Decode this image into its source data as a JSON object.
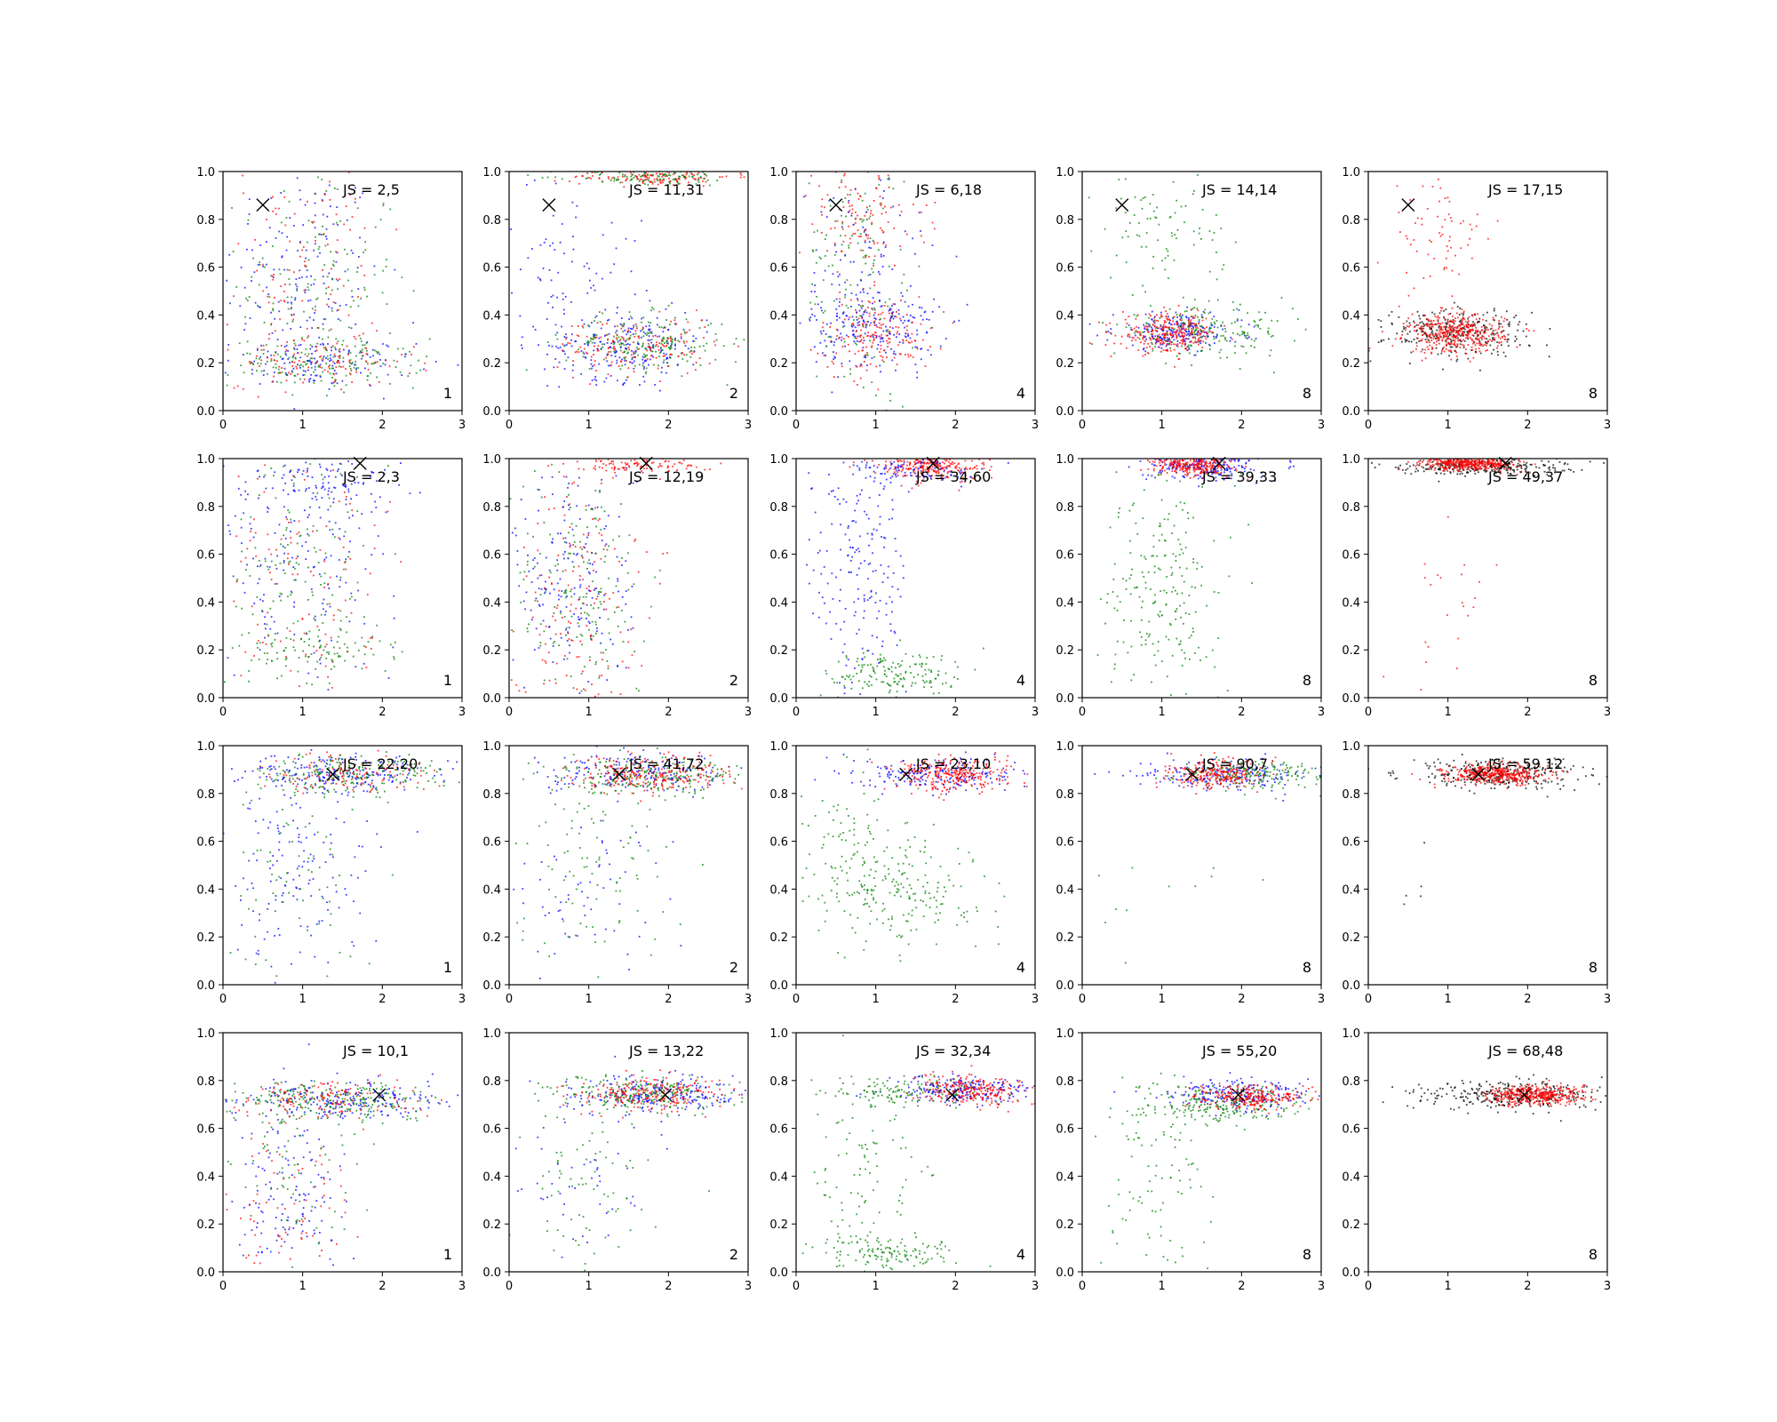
{
  "figure": {
    "rows": 4,
    "cols": 5,
    "xlim": [
      0,
      3
    ],
    "ylim": [
      0,
      1
    ],
    "xticks": [
      "0",
      "1",
      "2",
      "3"
    ],
    "yticks": [
      "0.0",
      "0.2",
      "0.4",
      "0.6",
      "0.8",
      "1.0"
    ],
    "marker_color": "#000000",
    "series_colors": {
      "blue": "#0000ff",
      "green": "#008000",
      "red": "#ff0000",
      "black": "#000000"
    }
  },
  "chart_data": {
    "type": "scatter",
    "grid": false,
    "panels": [
      {
        "row": 0,
        "col": 0,
        "js": "JS = 2,5",
        "tag": "1",
        "marker": [
          0.5,
          0.86
        ]
      },
      {
        "row": 0,
        "col": 1,
        "js": "JS = 11,31",
        "tag": "2",
        "marker": [
          0.5,
          0.86
        ]
      },
      {
        "row": 0,
        "col": 2,
        "js": "JS = 6,18",
        "tag": "4",
        "marker": [
          0.5,
          0.86
        ]
      },
      {
        "row": 0,
        "col": 3,
        "js": "JS = 14,14",
        "tag": "8",
        "marker": [
          0.5,
          0.86
        ]
      },
      {
        "row": 0,
        "col": 4,
        "js": "JS = 17,15",
        "tag": "8",
        "marker": [
          0.5,
          0.86
        ]
      },
      {
        "row": 1,
        "col": 0,
        "js": "JS = 2,3",
        "tag": "1",
        "marker": [
          1.72,
          0.98
        ]
      },
      {
        "row": 1,
        "col": 1,
        "js": "JS = 12,19",
        "tag": "2",
        "marker": [
          1.72,
          0.98
        ]
      },
      {
        "row": 1,
        "col": 2,
        "js": "JS = 34,60",
        "tag": "4",
        "marker": [
          1.72,
          0.98
        ]
      },
      {
        "row": 1,
        "col": 3,
        "js": "JS = 39,33",
        "tag": "8",
        "marker": [
          1.72,
          0.98
        ]
      },
      {
        "row": 1,
        "col": 4,
        "js": "JS = 49,37",
        "tag": "8",
        "marker": [
          1.72,
          0.98
        ]
      },
      {
        "row": 2,
        "col": 0,
        "js": "JS = 22,20",
        "tag": "1",
        "marker": [
          1.38,
          0.88
        ]
      },
      {
        "row": 2,
        "col": 1,
        "js": "JS = 41,72",
        "tag": "2",
        "marker": [
          1.38,
          0.88
        ]
      },
      {
        "row": 2,
        "col": 2,
        "js": "JS = 23,10",
        "tag": "4",
        "marker": [
          1.38,
          0.88
        ]
      },
      {
        "row": 2,
        "col": 3,
        "js": "JS = 90,7",
        "tag": "8",
        "marker": [
          1.38,
          0.88
        ]
      },
      {
        "row": 2,
        "col": 4,
        "js": "JS = 59,12",
        "tag": "8",
        "marker": [
          1.38,
          0.88
        ]
      },
      {
        "row": 3,
        "col": 0,
        "js": "JS = 10,1",
        "tag": "1",
        "marker": [
          1.96,
          0.74
        ]
      },
      {
        "row": 3,
        "col": 1,
        "js": "JS = 13,22",
        "tag": "2",
        "marker": [
          1.96,
          0.74
        ]
      },
      {
        "row": 3,
        "col": 2,
        "js": "JS = 32,34",
        "tag": "4",
        "marker": [
          1.96,
          0.74
        ]
      },
      {
        "row": 3,
        "col": 3,
        "js": "JS = 55,20",
        "tag": "8",
        "marker": [
          1.96,
          0.74
        ]
      },
      {
        "row": 3,
        "col": 4,
        "js": "JS = 68,48",
        "tag": "8",
        "marker": [
          1.96,
          0.74
        ]
      }
    ],
    "clusters": {
      "0-0": [
        {
          "color": "blue",
          "n": 170,
          "cx": 1.0,
          "cy": 0.55,
          "sx": 0.5,
          "sy": 0.25
        },
        {
          "color": "green",
          "n": 150,
          "cx": 1.2,
          "cy": 0.55,
          "sx": 0.5,
          "sy": 0.25
        },
        {
          "color": "red",
          "n": 120,
          "cx": 1.0,
          "cy": 0.55,
          "sx": 0.5,
          "sy": 0.25
        },
        {
          "color": "green",
          "n": 160,
          "cx": 1.3,
          "cy": 0.2,
          "sx": 0.6,
          "sy": 0.05
        },
        {
          "color": "blue",
          "n": 120,
          "cx": 1.2,
          "cy": 0.2,
          "sx": 0.6,
          "sy": 0.05
        },
        {
          "color": "red",
          "n": 100,
          "cx": 1.2,
          "cy": 0.2,
          "sx": 0.6,
          "sy": 0.05
        }
      ],
      "0-1": [
        {
          "color": "red",
          "n": 150,
          "cx": 1.8,
          "cy": 0.98,
          "sx": 0.5,
          "sy": 0.02
        },
        {
          "color": "green",
          "n": 120,
          "cx": 1.8,
          "cy": 0.98,
          "sx": 0.5,
          "sy": 0.02
        },
        {
          "color": "blue",
          "n": 220,
          "cx": 1.5,
          "cy": 0.27,
          "sx": 0.5,
          "sy": 0.07
        },
        {
          "color": "green",
          "n": 200,
          "cx": 1.7,
          "cy": 0.28,
          "sx": 0.5,
          "sy": 0.06
        },
        {
          "color": "red",
          "n": 160,
          "cx": 1.6,
          "cy": 0.27,
          "sx": 0.5,
          "sy": 0.06
        },
        {
          "color": "blue",
          "n": 90,
          "cx": 0.7,
          "cy": 0.6,
          "sx": 0.5,
          "sy": 0.2
        }
      ],
      "0-2": [
        {
          "color": "blue",
          "n": 200,
          "cx": 1.0,
          "cy": 0.35,
          "sx": 0.4,
          "sy": 0.08
        },
        {
          "color": "red",
          "n": 180,
          "cx": 1.0,
          "cy": 0.32,
          "sx": 0.35,
          "sy": 0.08
        },
        {
          "color": "green",
          "n": 150,
          "cx": 0.8,
          "cy": 0.6,
          "sx": 0.35,
          "sy": 0.3
        },
        {
          "color": "red",
          "n": 130,
          "cx": 0.8,
          "cy": 0.8,
          "sx": 0.4,
          "sy": 0.12
        },
        {
          "color": "blue",
          "n": 110,
          "cx": 0.8,
          "cy": 0.6,
          "sx": 0.4,
          "sy": 0.25
        }
      ],
      "0-3": [
        {
          "color": "blue",
          "n": 220,
          "cx": 1.2,
          "cy": 0.33,
          "sx": 0.4,
          "sy": 0.04
        },
        {
          "color": "green",
          "n": 200,
          "cx": 1.5,
          "cy": 0.33,
          "sx": 0.55,
          "sy": 0.05
        },
        {
          "color": "red",
          "n": 280,
          "cx": 1.1,
          "cy": 0.32,
          "sx": 0.3,
          "sy": 0.04
        },
        {
          "color": "green",
          "n": 90,
          "cx": 1.0,
          "cy": 0.75,
          "sx": 0.4,
          "sy": 0.12
        }
      ],
      "0-4": [
        {
          "color": "black",
          "n": 300,
          "cx": 1.1,
          "cy": 0.33,
          "sx": 0.45,
          "sy": 0.05
        },
        {
          "color": "red",
          "n": 420,
          "cx": 1.1,
          "cy": 0.32,
          "sx": 0.3,
          "sy": 0.04
        },
        {
          "color": "red",
          "n": 70,
          "cx": 0.9,
          "cy": 0.72,
          "sx": 0.3,
          "sy": 0.15
        }
      ],
      "1-0": [
        {
          "color": "blue",
          "n": 180,
          "cx": 1.0,
          "cy": 0.6,
          "sx": 0.6,
          "sy": 0.25
        },
        {
          "color": "green",
          "n": 150,
          "cx": 1.0,
          "cy": 0.55,
          "sx": 0.5,
          "sy": 0.28
        },
        {
          "color": "red",
          "n": 120,
          "cx": 1.0,
          "cy": 0.5,
          "sx": 0.5,
          "sy": 0.28
        },
        {
          "color": "blue",
          "n": 100,
          "cx": 1.2,
          "cy": 0.9,
          "sx": 0.6,
          "sy": 0.06
        },
        {
          "color": "green",
          "n": 90,
          "cx": 1.1,
          "cy": 0.2,
          "sx": 0.5,
          "sy": 0.05
        }
      ],
      "1-1": [
        {
          "color": "blue",
          "n": 200,
          "cx": 0.8,
          "cy": 0.5,
          "sx": 0.4,
          "sy": 0.28
        },
        {
          "color": "green",
          "n": 180,
          "cx": 0.9,
          "cy": 0.45,
          "sx": 0.4,
          "sy": 0.28
        },
        {
          "color": "red",
          "n": 170,
          "cx": 0.8,
          "cy": 0.4,
          "sx": 0.4,
          "sy": 0.28
        },
        {
          "color": "red",
          "n": 120,
          "cx": 1.6,
          "cy": 0.98,
          "sx": 0.4,
          "sy": 0.02
        }
      ],
      "1-2": [
        {
          "color": "red",
          "n": 300,
          "cx": 1.7,
          "cy": 0.97,
          "sx": 0.35,
          "sy": 0.03
        },
        {
          "color": "blue",
          "n": 200,
          "cx": 0.8,
          "cy": 0.55,
          "sx": 0.3,
          "sy": 0.28
        },
        {
          "color": "green",
          "n": 160,
          "cx": 1.3,
          "cy": 0.1,
          "sx": 0.45,
          "sy": 0.05
        },
        {
          "color": "blue",
          "n": 100,
          "cx": 1.5,
          "cy": 0.95,
          "sx": 0.45,
          "sy": 0.03
        }
      ],
      "1-3": [
        {
          "color": "blue",
          "n": 220,
          "cx": 1.5,
          "cy": 0.97,
          "sx": 0.35,
          "sy": 0.03
        },
        {
          "color": "red",
          "n": 280,
          "cx": 1.4,
          "cy": 0.97,
          "sx": 0.25,
          "sy": 0.02
        },
        {
          "color": "green",
          "n": 220,
          "cx": 1.0,
          "cy": 0.45,
          "sx": 0.35,
          "sy": 0.25
        }
      ],
      "1-4": [
        {
          "color": "black",
          "n": 280,
          "cx": 1.4,
          "cy": 0.97,
          "sx": 0.55,
          "sy": 0.02
        },
        {
          "color": "red",
          "n": 420,
          "cx": 1.3,
          "cy": 0.98,
          "sx": 0.3,
          "sy": 0.015
        },
        {
          "color": "red",
          "n": 25,
          "cx": 1.0,
          "cy": 0.4,
          "sx": 0.25,
          "sy": 0.2
        }
      ],
      "2-0": [
        {
          "color": "blue",
          "n": 200,
          "cx": 1.5,
          "cy": 0.88,
          "sx": 0.7,
          "sy": 0.04
        },
        {
          "color": "green",
          "n": 200,
          "cx": 1.6,
          "cy": 0.88,
          "sx": 0.6,
          "sy": 0.04
        },
        {
          "color": "red",
          "n": 120,
          "cx": 1.5,
          "cy": 0.88,
          "sx": 0.6,
          "sy": 0.04
        },
        {
          "color": "blue",
          "n": 160,
          "cx": 0.9,
          "cy": 0.45,
          "sx": 0.5,
          "sy": 0.25
        },
        {
          "color": "green",
          "n": 80,
          "cx": 1.0,
          "cy": 0.45,
          "sx": 0.5,
          "sy": 0.25
        }
      ],
      "2-1": [
        {
          "color": "blue",
          "n": 180,
          "cx": 1.7,
          "cy": 0.88,
          "sx": 0.6,
          "sy": 0.04
        },
        {
          "color": "green",
          "n": 200,
          "cx": 1.8,
          "cy": 0.88,
          "sx": 0.55,
          "sy": 0.04
        },
        {
          "color": "red",
          "n": 240,
          "cx": 1.8,
          "cy": 0.88,
          "sx": 0.5,
          "sy": 0.04
        },
        {
          "color": "green",
          "n": 110,
          "cx": 1.0,
          "cy": 0.45,
          "sx": 0.5,
          "sy": 0.25
        },
        {
          "color": "blue",
          "n": 70,
          "cx": 0.9,
          "cy": 0.4,
          "sx": 0.5,
          "sy": 0.25
        }
      ],
      "2-2": [
        {
          "color": "blue",
          "n": 200,
          "cx": 1.8,
          "cy": 0.88,
          "sx": 0.5,
          "sy": 0.035
        },
        {
          "color": "red",
          "n": 280,
          "cx": 2.0,
          "cy": 0.88,
          "sx": 0.35,
          "sy": 0.035
        },
        {
          "color": "green",
          "n": 200,
          "cx": 1.3,
          "cy": 0.4,
          "sx": 0.5,
          "sy": 0.12
        },
        {
          "color": "green",
          "n": 80,
          "cx": 0.7,
          "cy": 0.6,
          "sx": 0.3,
          "sy": 0.2
        }
      ],
      "2-3": [
        {
          "color": "blue",
          "n": 180,
          "cx": 1.8,
          "cy": 0.88,
          "sx": 0.55,
          "sy": 0.03
        },
        {
          "color": "green",
          "n": 200,
          "cx": 2.2,
          "cy": 0.88,
          "sx": 0.5,
          "sy": 0.03
        },
        {
          "color": "red",
          "n": 250,
          "cx": 1.7,
          "cy": 0.88,
          "sx": 0.3,
          "sy": 0.03
        },
        {
          "color": "green",
          "n": 12,
          "cx": 1.0,
          "cy": 0.4,
          "sx": 0.5,
          "sy": 0.25
        }
      ],
      "2-4": [
        {
          "color": "black",
          "n": 280,
          "cx": 1.6,
          "cy": 0.88,
          "sx": 0.55,
          "sy": 0.03
        },
        {
          "color": "red",
          "n": 420,
          "cx": 1.6,
          "cy": 0.88,
          "sx": 0.3,
          "sy": 0.02
        },
        {
          "color": "black",
          "n": 5,
          "cx": 0.6,
          "cy": 0.5,
          "sx": 0.2,
          "sy": 0.1
        }
      ],
      "3-0": [
        {
          "color": "blue",
          "n": 220,
          "cx": 1.5,
          "cy": 0.72,
          "sx": 0.7,
          "sy": 0.04
        },
        {
          "color": "green",
          "n": 220,
          "cx": 1.4,
          "cy": 0.72,
          "sx": 0.6,
          "sy": 0.04
        },
        {
          "color": "red",
          "n": 140,
          "cx": 1.3,
          "cy": 0.72,
          "sx": 0.6,
          "sy": 0.04
        },
        {
          "color": "blue",
          "n": 140,
          "cx": 0.8,
          "cy": 0.3,
          "sx": 0.4,
          "sy": 0.2
        },
        {
          "color": "red",
          "n": 80,
          "cx": 0.8,
          "cy": 0.25,
          "sx": 0.4,
          "sy": 0.2
        },
        {
          "color": "green",
          "n": 70,
          "cx": 0.9,
          "cy": 0.4,
          "sx": 0.4,
          "sy": 0.2
        }
      ],
      "3-1": [
        {
          "color": "blue",
          "n": 220,
          "cx": 1.8,
          "cy": 0.74,
          "sx": 0.6,
          "sy": 0.04
        },
        {
          "color": "green",
          "n": 220,
          "cx": 1.7,
          "cy": 0.74,
          "sx": 0.55,
          "sy": 0.04
        },
        {
          "color": "red",
          "n": 220,
          "cx": 1.8,
          "cy": 0.74,
          "sx": 0.45,
          "sy": 0.035
        },
        {
          "color": "green",
          "n": 80,
          "cx": 1.0,
          "cy": 0.4,
          "sx": 0.45,
          "sy": 0.2
        },
        {
          "color": "blue",
          "n": 50,
          "cx": 0.9,
          "cy": 0.4,
          "sx": 0.45,
          "sy": 0.2
        }
      ],
      "3-2": [
        {
          "color": "blue",
          "n": 220,
          "cx": 2.1,
          "cy": 0.76,
          "sx": 0.45,
          "sy": 0.03
        },
        {
          "color": "red",
          "n": 250,
          "cx": 2.2,
          "cy": 0.76,
          "sx": 0.35,
          "sy": 0.03
        },
        {
          "color": "green",
          "n": 120,
          "cx": 1.4,
          "cy": 0.75,
          "sx": 0.5,
          "sy": 0.03
        },
        {
          "color": "green",
          "n": 130,
          "cx": 1.2,
          "cy": 0.08,
          "sx": 0.45,
          "sy": 0.04
        },
        {
          "color": "green",
          "n": 100,
          "cx": 0.9,
          "cy": 0.45,
          "sx": 0.35,
          "sy": 0.22
        }
      ],
      "3-3": [
        {
          "color": "blue",
          "n": 220,
          "cx": 2.0,
          "cy": 0.74,
          "sx": 0.45,
          "sy": 0.03
        },
        {
          "color": "green",
          "n": 220,
          "cx": 1.7,
          "cy": 0.7,
          "sx": 0.55,
          "sy": 0.04
        },
        {
          "color": "red",
          "n": 250,
          "cx": 2.1,
          "cy": 0.73,
          "sx": 0.3,
          "sy": 0.025
        },
        {
          "color": "green",
          "n": 90,
          "cx": 0.9,
          "cy": 0.4,
          "sx": 0.4,
          "sy": 0.22
        }
      ],
      "3-4": [
        {
          "color": "black",
          "n": 300,
          "cx": 1.8,
          "cy": 0.74,
          "sx": 0.6,
          "sy": 0.03
        },
        {
          "color": "red",
          "n": 420,
          "cx": 2.1,
          "cy": 0.74,
          "sx": 0.3,
          "sy": 0.02
        }
      ]
    }
  }
}
